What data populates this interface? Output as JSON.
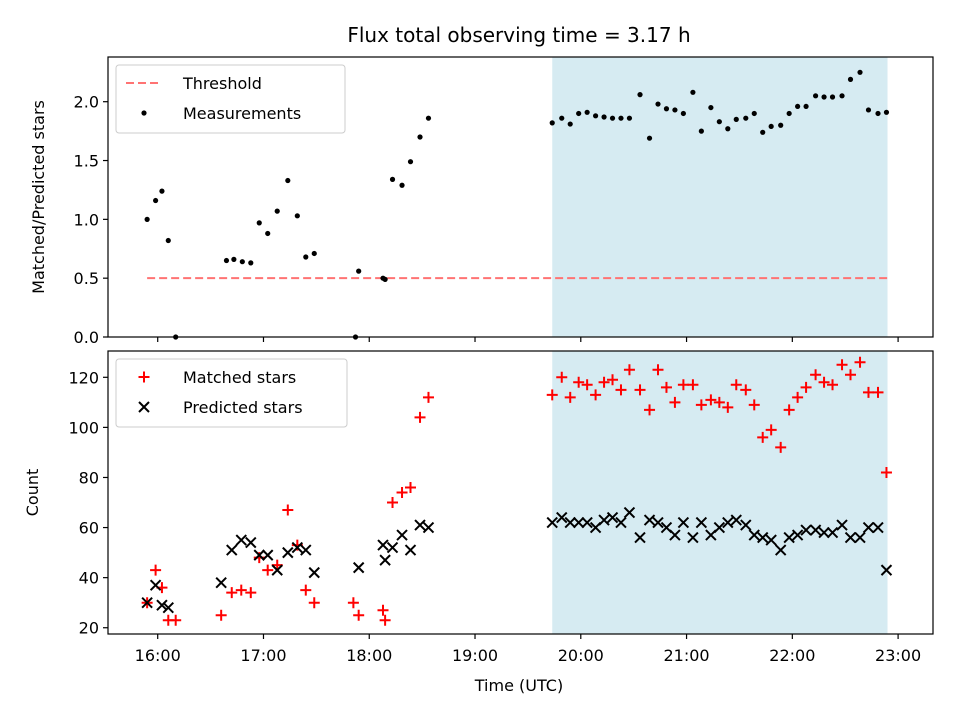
{
  "title": "Flux total observing time = 3.17 h",
  "xlabel": "Time (UTC)",
  "xticks": [
    {
      "t": 16,
      "label": "16:00"
    },
    {
      "t": 17,
      "label": "17:00"
    },
    {
      "t": 18,
      "label": "18:00"
    },
    {
      "t": 19,
      "label": "19:00"
    },
    {
      "t": 20,
      "label": "20:00"
    },
    {
      "t": 21,
      "label": "21:00"
    },
    {
      "t": 22,
      "label": "22:00"
    },
    {
      "t": 23,
      "label": "23:00"
    }
  ],
  "colors": {
    "threshold": "#ff7373",
    "measurements": "#000000",
    "matched": "#ff0000",
    "predicted": "#000000",
    "span": "#add8e6"
  },
  "chart_data": [
    {
      "type": "scatter",
      "panel": "top",
      "ylabel": "Matched/Predicted stars",
      "xlim": [
        15.53,
        23.33
      ],
      "ylim": [
        0,
        2.38
      ],
      "yticks": [
        0.0,
        0.5,
        1.0,
        1.5,
        2.0
      ],
      "ytick_labels": [
        "0.0",
        "0.5",
        "1.0",
        "1.5",
        "2.0"
      ],
      "shaded_span": [
        19.73,
        22.9
      ],
      "threshold": {
        "name": "Threshold",
        "y": 0.5,
        "x": [
          15.9,
          22.9
        ],
        "style": "dashed"
      },
      "legend": [
        "Threshold",
        "Measurements"
      ],
      "legend_position": "upper left",
      "series": [
        {
          "name": "Measurements",
          "points": [
            [
              15.9,
              1.0
            ],
            [
              15.98,
              1.16
            ],
            [
              16.04,
              1.24
            ],
            [
              16.1,
              0.82
            ],
            [
              16.17,
              0.0
            ],
            [
              16.65,
              0.65
            ],
            [
              16.72,
              0.66
            ],
            [
              16.8,
              0.64
            ],
            [
              16.88,
              0.63
            ],
            [
              16.96,
              0.97
            ],
            [
              17.04,
              0.88
            ],
            [
              17.13,
              1.07
            ],
            [
              17.23,
              1.33
            ],
            [
              17.32,
              1.03
            ],
            [
              17.4,
              0.68
            ],
            [
              17.48,
              0.71
            ],
            [
              17.87,
              0.0
            ],
            [
              17.9,
              0.56
            ],
            [
              18.13,
              0.5
            ],
            [
              18.15,
              0.49
            ],
            [
              18.22,
              1.34
            ],
            [
              18.31,
              1.29
            ],
            [
              18.39,
              1.49
            ],
            [
              18.48,
              1.7
            ],
            [
              18.56,
              1.86
            ],
            [
              19.73,
              1.82
            ],
            [
              19.82,
              1.86
            ],
            [
              19.9,
              1.81
            ],
            [
              19.98,
              1.9
            ],
            [
              20.06,
              1.91
            ],
            [
              20.14,
              1.88
            ],
            [
              20.22,
              1.87
            ],
            [
              20.3,
              1.86
            ],
            [
              20.38,
              1.86
            ],
            [
              20.46,
              1.86
            ],
            [
              20.56,
              2.06
            ],
            [
              20.65,
              1.69
            ],
            [
              20.73,
              1.98
            ],
            [
              20.81,
              1.94
            ],
            [
              20.89,
              1.93
            ],
            [
              20.97,
              1.9
            ],
            [
              21.06,
              2.08
            ],
            [
              21.14,
              1.75
            ],
            [
              21.23,
              1.95
            ],
            [
              21.31,
              1.83
            ],
            [
              21.39,
              1.77
            ],
            [
              21.47,
              1.85
            ],
            [
              21.56,
              1.86
            ],
            [
              21.64,
              1.9
            ],
            [
              21.72,
              1.74
            ],
            [
              21.8,
              1.79
            ],
            [
              21.89,
              1.8
            ],
            [
              21.97,
              1.9
            ],
            [
              22.05,
              1.96
            ],
            [
              22.13,
              1.96
            ],
            [
              22.22,
              2.05
            ],
            [
              22.3,
              2.04
            ],
            [
              22.38,
              2.04
            ],
            [
              22.47,
              2.05
            ],
            [
              22.55,
              2.19
            ],
            [
              22.64,
              2.25
            ],
            [
              22.72,
              1.93
            ],
            [
              22.81,
              1.9
            ],
            [
              22.89,
              1.91
            ]
          ]
        }
      ]
    },
    {
      "type": "scatter",
      "panel": "bottom",
      "ylabel": "Count",
      "xlim": [
        15.53,
        23.33
      ],
      "ylim": [
        17.5,
        130.5
      ],
      "yticks": [
        20,
        40,
        60,
        80,
        100,
        120
      ],
      "ytick_labels": [
        "20",
        "40",
        "60",
        "80",
        "100",
        "120"
      ],
      "shaded_span": [
        19.73,
        22.9
      ],
      "legend": [
        "Matched stars",
        "Predicted stars"
      ],
      "legend_position": "upper left",
      "series": [
        {
          "name": "Matched stars",
          "marker": "plus",
          "points": [
            [
              15.9,
              30
            ],
            [
              15.98,
              43
            ],
            [
              16.04,
              36
            ],
            [
              16.1,
              23
            ],
            [
              16.17,
              23
            ],
            [
              16.6,
              25
            ],
            [
              16.7,
              34
            ],
            [
              16.79,
              35
            ],
            [
              16.88,
              34
            ],
            [
              16.96,
              48
            ],
            [
              17.04,
              43
            ],
            [
              17.13,
              45
            ],
            [
              17.23,
              67
            ],
            [
              17.32,
              53
            ],
            [
              17.4,
              35
            ],
            [
              17.48,
              30
            ],
            [
              17.85,
              30
            ],
            [
              17.9,
              25
            ],
            [
              18.13,
              27
            ],
            [
              18.15,
              23
            ],
            [
              18.22,
              70
            ],
            [
              18.31,
              74
            ],
            [
              18.39,
              76
            ],
            [
              18.48,
              104
            ],
            [
              18.56,
              112
            ],
            [
              19.73,
              113
            ],
            [
              19.82,
              120
            ],
            [
              19.9,
              112
            ],
            [
              19.98,
              118
            ],
            [
              20.06,
              117
            ],
            [
              20.14,
              113
            ],
            [
              20.22,
              118
            ],
            [
              20.3,
              119
            ],
            [
              20.38,
              115
            ],
            [
              20.46,
              123
            ],
            [
              20.56,
              115
            ],
            [
              20.65,
              107
            ],
            [
              20.73,
              123
            ],
            [
              20.81,
              116
            ],
            [
              20.89,
              110
            ],
            [
              20.97,
              117
            ],
            [
              21.06,
              117
            ],
            [
              21.14,
              109
            ],
            [
              21.23,
              111
            ],
            [
              21.31,
              110
            ],
            [
              21.39,
              108
            ],
            [
              21.47,
              117
            ],
            [
              21.56,
              115
            ],
            [
              21.64,
              109
            ],
            [
              21.72,
              96
            ],
            [
              21.8,
              99
            ],
            [
              21.89,
              92
            ],
            [
              21.97,
              107
            ],
            [
              22.05,
              112
            ],
            [
              22.13,
              116
            ],
            [
              22.22,
              121
            ],
            [
              22.3,
              118
            ],
            [
              22.38,
              117
            ],
            [
              22.47,
              125
            ],
            [
              22.55,
              121
            ],
            [
              22.64,
              126
            ],
            [
              22.72,
              114
            ],
            [
              22.81,
              114
            ],
            [
              22.89,
              82
            ]
          ]
        },
        {
          "name": "Predicted stars",
          "marker": "x",
          "points": [
            [
              15.9,
              30
            ],
            [
              15.98,
              37
            ],
            [
              16.04,
              29
            ],
            [
              16.1,
              28
            ],
            [
              16.6,
              38
            ],
            [
              16.7,
              51
            ],
            [
              16.79,
              55
            ],
            [
              16.88,
              54
            ],
            [
              16.96,
              49
            ],
            [
              17.04,
              49
            ],
            [
              17.13,
              43
            ],
            [
              17.23,
              50
            ],
            [
              17.32,
              52
            ],
            [
              17.4,
              51
            ],
            [
              17.48,
              42
            ],
            [
              17.9,
              44
            ],
            [
              18.13,
              53
            ],
            [
              18.15,
              47
            ],
            [
              18.22,
              52
            ],
            [
              18.31,
              57
            ],
            [
              18.39,
              51
            ],
            [
              18.48,
              61
            ],
            [
              18.56,
              60
            ],
            [
              19.73,
              62
            ],
            [
              19.82,
              64
            ],
            [
              19.9,
              62
            ],
            [
              19.98,
              62
            ],
            [
              20.06,
              62
            ],
            [
              20.14,
              60
            ],
            [
              20.22,
              63
            ],
            [
              20.3,
              64
            ],
            [
              20.38,
              62
            ],
            [
              20.46,
              66
            ],
            [
              20.56,
              56
            ],
            [
              20.65,
              63
            ],
            [
              20.73,
              62
            ],
            [
              20.81,
              60
            ],
            [
              20.89,
              57
            ],
            [
              20.97,
              62
            ],
            [
              21.06,
              56
            ],
            [
              21.14,
              62
            ],
            [
              21.23,
              57
            ],
            [
              21.31,
              60
            ],
            [
              21.39,
              62
            ],
            [
              21.47,
              63
            ],
            [
              21.56,
              61
            ],
            [
              21.64,
              57
            ],
            [
              21.72,
              56
            ],
            [
              21.8,
              55
            ],
            [
              21.89,
              51
            ],
            [
              21.97,
              56
            ],
            [
              22.05,
              57
            ],
            [
              22.13,
              59
            ],
            [
              22.22,
              59
            ],
            [
              22.3,
              58
            ],
            [
              22.38,
              58
            ],
            [
              22.47,
              61
            ],
            [
              22.55,
              56
            ],
            [
              22.64,
              56
            ],
            [
              22.72,
              60
            ],
            [
              22.81,
              60
            ],
            [
              22.89,
              43
            ]
          ]
        }
      ]
    }
  ]
}
